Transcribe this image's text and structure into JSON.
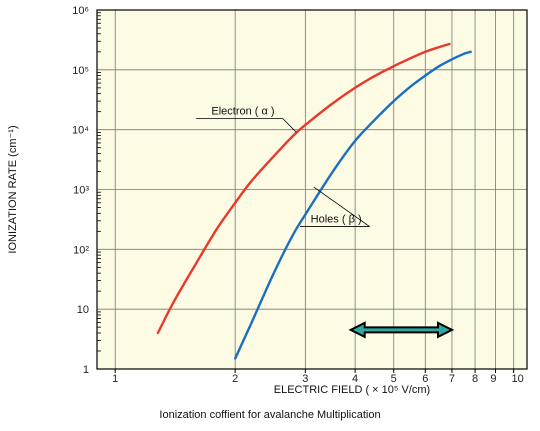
{
  "chart_data": {
    "type": "line",
    "title": "",
    "caption": "Ionization coffient for avalanche Multiplication",
    "xlabel": "ELECTRIC FIELD ( × 10⁵ V/cm)",
    "ylabel": "IONIZATION RATE (cm⁻¹)",
    "xscale": "log",
    "yscale": "log",
    "xlim": [
      0.9,
      10.8
    ],
    "ylim": [
      1,
      1000000
    ],
    "grid": true,
    "x_ticks": [
      {
        "value": 1,
        "label": "1"
      },
      {
        "value": 2,
        "label": "2"
      },
      {
        "value": 3,
        "label": "3"
      },
      {
        "value": 4,
        "label": "4"
      },
      {
        "value": 5,
        "label": "5"
      },
      {
        "value": 6,
        "label": "6"
      },
      {
        "value": 7,
        "label": "7"
      },
      {
        "value": 8,
        "label": "8"
      },
      {
        "value": 9,
        "label": "9"
      },
      {
        "value": 10,
        "label": "10"
      }
    ],
    "y_ticks": [
      {
        "value": 1,
        "label": "1"
      },
      {
        "value": 10,
        "label": "10"
      },
      {
        "value": 100,
        "label": "10²"
      },
      {
        "value": 1000,
        "label": "10³"
      },
      {
        "value": 10000,
        "label": "10⁴"
      },
      {
        "value": 100000,
        "label": "10⁵"
      },
      {
        "value": 1000000,
        "label": "10⁶"
      }
    ],
    "series": [
      {
        "name": "Electron ( α )",
        "color": "#e8392a",
        "x": [
          1.28,
          1.4,
          1.6,
          1.8,
          2.0,
          2.2,
          2.5,
          2.8,
          3.0,
          3.5,
          4.0,
          4.5,
          5.0,
          5.5,
          6.0,
          6.5,
          6.9
        ],
        "y": [
          4,
          13,
          60,
          220,
          600,
          1400,
          3600,
          8000,
          12000,
          27000,
          50000,
          80000,
          115000,
          155000,
          200000,
          240000,
          270000
        ]
      },
      {
        "name": "Holes ( β )",
        "color": "#1a6fc0",
        "x": [
          2.0,
          2.2,
          2.5,
          2.8,
          3.0,
          3.5,
          4.0,
          4.5,
          5.0,
          5.5,
          6.0,
          6.5,
          7.0,
          7.5,
          7.8
        ],
        "y": [
          1.5,
          6,
          40,
          180,
          380,
          1900,
          6500,
          15000,
          30000,
          52000,
          80000,
          115000,
          150000,
          185000,
          200000
        ]
      }
    ],
    "annotations": [
      {
        "text": "Electron ( α )",
        "series": 0,
        "x": 2.6,
        "y": 18000
      },
      {
        "text": "Holes ( β )",
        "series": 1,
        "x": 4.3,
        "y": 280
      }
    ],
    "range_arrow": {
      "x_start": 3.9,
      "x_end": 7.0,
      "y": 4.5,
      "fill": "#2ea8a0",
      "outline": "#000000"
    },
    "colors": {
      "plot_background": "#fdfbe4",
      "grid": "#777777",
      "frame": "#000000"
    }
  }
}
